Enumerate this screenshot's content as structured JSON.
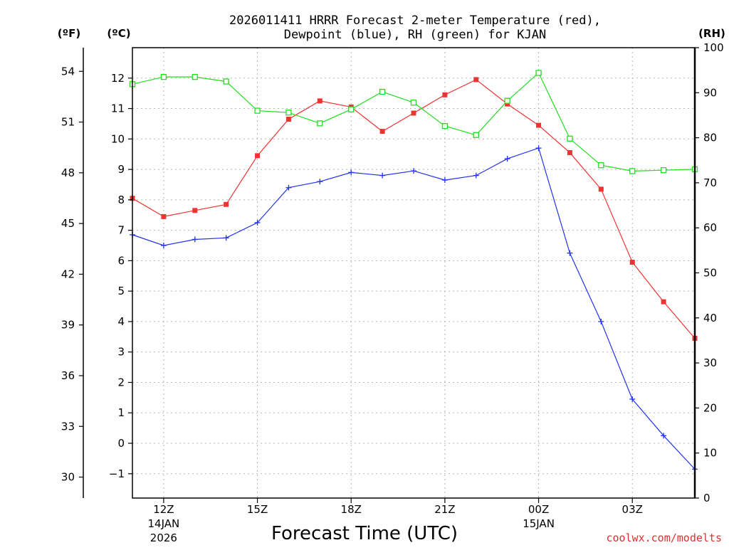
{
  "chart_data": {
    "type": "line",
    "title_line1": "2026011411 HRRR Forecast 2-meter Temperature (red),",
    "title_line2": "Dewpoint (blue), RH (green) for KJAN",
    "xlabel": "Forecast Time (UTC)",
    "credit": "coolwx.com/modelts",
    "units": {
      "fahrenheit": "(ºF)",
      "celsius": "(ºC)",
      "rh": "(RH)"
    },
    "x_hours": [
      11,
      12,
      13,
      14,
      15,
      16,
      17,
      18,
      19,
      20,
      21,
      22,
      23,
      24,
      25,
      26,
      27,
      28,
      29
    ],
    "xlim": [
      11,
      29
    ],
    "ylim_c": [
      -1.8,
      13.0
    ],
    "ylim_rh": [
      0,
      100
    ],
    "x_ticks": [
      {
        "hour": 12,
        "label": "12Z",
        "date": "14JAN",
        "year": "2026"
      },
      {
        "hour": 15,
        "label": "15Z",
        "date": "",
        "year": ""
      },
      {
        "hour": 18,
        "label": "18Z",
        "date": "",
        "year": ""
      },
      {
        "hour": 21,
        "label": "21Z",
        "date": "",
        "year": ""
      },
      {
        "hour": 24,
        "label": "00Z",
        "date": "15JAN",
        "year": ""
      },
      {
        "hour": 27,
        "label": "03Z",
        "date": "",
        "year": ""
      }
    ],
    "y_ticks_c": [
      "-1",
      "0",
      "1",
      "2",
      "3",
      "4",
      "5",
      "6",
      "7",
      "8",
      "9",
      "10",
      "11",
      "12"
    ],
    "y_ticks_f": [
      "30",
      "33",
      "36",
      "39",
      "42",
      "45",
      "48",
      "51",
      "54"
    ],
    "y_ticks_rh": [
      "0",
      "10",
      "20",
      "30",
      "40",
      "50",
      "60",
      "70",
      "80",
      "90",
      "100"
    ],
    "series": [
      {
        "name": "Temperature",
        "units": "C",
        "color": "#ee3333",
        "marker": "filled-square",
        "values": [
          8.05,
          7.45,
          7.65,
          7.85,
          9.45,
          10.65,
          11.25,
          11.05,
          10.25,
          10.85,
          11.45,
          11.95,
          11.15,
          10.45,
          9.55,
          8.35,
          5.95,
          4.65,
          3.45
        ]
      },
      {
        "name": "Dewpoint",
        "units": "C",
        "color": "#2233ee",
        "marker": "plus",
        "values": [
          6.85,
          6.5,
          6.7,
          6.75,
          7.25,
          8.4,
          8.6,
          8.9,
          8.8,
          8.95,
          8.65,
          8.8,
          9.35,
          9.7,
          6.25,
          4.0,
          1.45,
          0.25,
          -0.85
        ]
      },
      {
        "name": "RH",
        "units": "%",
        "color": "#22dd22",
        "marker": "open-square",
        "values": [
          91.9,
          93.5,
          93.5,
          92.5,
          86.0,
          85.6,
          83.2,
          86.3,
          90.2,
          87.8,
          82.6,
          80.6,
          88.2,
          94.4,
          79.8,
          73.9,
          72.6,
          72.8,
          73.0
        ]
      }
    ]
  }
}
